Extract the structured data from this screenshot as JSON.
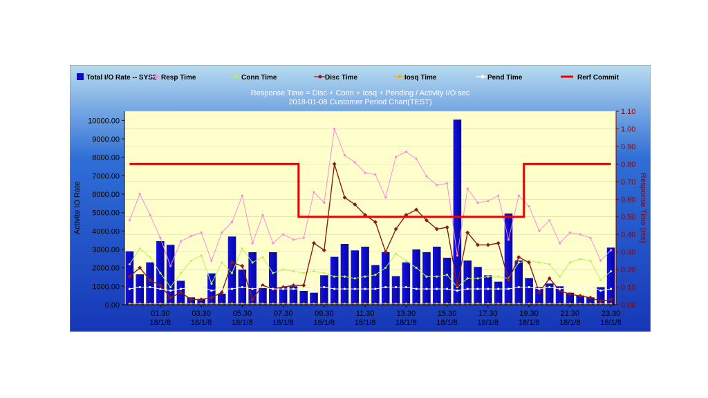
{
  "legend": [
    {
      "label": "Total I/O Rate -- SYS2",
      "color": "#0b0bcc",
      "marker": "square"
    },
    {
      "label": "Resp Time",
      "color": "#ff88dd",
      "marker": "triangle"
    },
    {
      "label": "Conn Time",
      "color": "#b8f060",
      "marker": "triangle"
    },
    {
      "label": "Disc Time",
      "color": "#8b1a1a",
      "marker": "diamond"
    },
    {
      "label": "Iosq Time",
      "color": "#ffaa00",
      "marker": "diamond"
    },
    {
      "label": "Pend Time",
      "color": "#ffffff",
      "marker": "star"
    },
    {
      "label": "Rerf Commit",
      "color": "#ee0000",
      "marker": "line"
    }
  ],
  "chart_data": {
    "type": "bar",
    "title": "Response Time = Disc + Conn + Iosq + Pending / Activity I/O sec",
    "subtitle": "2018-01-08 Customer Period Chart(TEST)",
    "ylabel": "Activite IO Rate",
    "y2label": "Response Time (ms)",
    "ylim": [
      0,
      10500
    ],
    "y2lim": [
      0,
      1.1
    ],
    "yticks": [
      "0.00",
      "1000.00",
      "2000.00",
      "3000.00",
      "4000.00",
      "5000.00",
      "6000.00",
      "7000.00",
      "8000.00",
      "9000.00",
      "10000.00"
    ],
    "y2ticks": [
      "0.00",
      "0.10",
      "0.20",
      "0.30",
      "0.40",
      "0.50",
      "0.60",
      "0.70",
      "0.80",
      "0.90",
      "1.00",
      "1.10"
    ],
    "xticks": [
      {
        "index": 3,
        "line1": "01.30",
        "line2": "18/1/8"
      },
      {
        "index": 7,
        "line1": "03.30",
        "line2": "18/1/8"
      },
      {
        "index": 11,
        "line1": "05.30",
        "line2": "18/1/8"
      },
      {
        "index": 15,
        "line1": "07.30",
        "line2": "18/1/8"
      },
      {
        "index": 19,
        "line1": "09.30",
        "line2": "18/1/8"
      },
      {
        "index": 23,
        "line1": "11.30",
        "line2": "18/1/8"
      },
      {
        "index": 27,
        "line1": "13.30",
        "line2": "18/1/8"
      },
      {
        "index": 31,
        "line1": "15.30",
        "line2": "18/1/8"
      },
      {
        "index": 35,
        "line1": "17.30",
        "line2": "18/1/8"
      },
      {
        "index": 39,
        "line1": "19.30",
        "line2": "18/1/8"
      },
      {
        "index": 43,
        "line1": "21.30",
        "line2": "18/1/8"
      },
      {
        "index": 47,
        "line1": "23.30",
        "line2": "18/1/8"
      }
    ],
    "bars": {
      "name": "Total I/O Rate -- SYS2",
      "axis": "left",
      "values": [
        2900,
        1650,
        2300,
        3450,
        3250,
        1300,
        400,
        300,
        1700,
        600,
        3700,
        1900,
        2850,
        900,
        2850,
        950,
        1000,
        750,
        650,
        1600,
        2600,
        3300,
        2950,
        3150,
        2150,
        2850,
        1550,
        2300,
        3000,
        2850,
        3150,
        2550,
        10050,
        2400,
        2050,
        1600,
        1250,
        4950,
        2400,
        1450,
        950,
        1150,
        1000,
        650,
        500,
        400,
        950,
        3100
      ]
    },
    "series": [
      {
        "name": "Resp Time",
        "axis": "right",
        "values": [
          0.48,
          0.63,
          0.51,
          0.38,
          0.22,
          0.36,
          0.39,
          0.41,
          0.25,
          0.41,
          0.47,
          0.62,
          0.35,
          0.51,
          0.35,
          0.4,
          0.37,
          0.38,
          0.64,
          0.58,
          1.0,
          0.85,
          0.81,
          0.75,
          0.74,
          0.61,
          0.84,
          0.87,
          0.83,
          0.73,
          0.68,
          0.69,
          0.28,
          0.66,
          0.58,
          0.59,
          0.62,
          0.37,
          0.62,
          0.56,
          0.42,
          0.48,
          0.35,
          0.41,
          0.4,
          0.38,
          0.25,
          0.31
        ]
      },
      {
        "name": "Conn Time",
        "axis": "right",
        "values": [
          0.23,
          0.32,
          0.27,
          0.18,
          0.1,
          0.18,
          0.25,
          0.28,
          0.12,
          0.24,
          0.18,
          0.32,
          0.24,
          0.27,
          0.18,
          0.2,
          0.19,
          0.18,
          0.19,
          0.18,
          0.16,
          0.16,
          0.15,
          0.16,
          0.17,
          0.21,
          0.29,
          0.25,
          0.21,
          0.16,
          0.16,
          0.17,
          0.1,
          0.15,
          0.15,
          0.16,
          0.16,
          0.15,
          0.24,
          0.25,
          0.24,
          0.23,
          0.16,
          0.24,
          0.26,
          0.25,
          0.14,
          0.19
        ]
      },
      {
        "name": "Disc Time",
        "axis": "right",
        "values": [
          0.16,
          0.21,
          0.14,
          0.11,
          0.04,
          0.07,
          0.03,
          0.03,
          0.04,
          0.07,
          0.24,
          0.22,
          0.03,
          0.11,
          0.09,
          0.1,
          0.11,
          0.11,
          0.35,
          0.31,
          0.8,
          0.61,
          0.57,
          0.51,
          0.47,
          0.3,
          0.43,
          0.51,
          0.54,
          0.48,
          0.43,
          0.44,
          0.11,
          0.41,
          0.34,
          0.34,
          0.35,
          0.14,
          0.27,
          0.24,
          0.07,
          0.15,
          0.08,
          0.06,
          0.05,
          0.04,
          0.02,
          0.03
        ]
      },
      {
        "name": "Iosq Time",
        "axis": "right",
        "values": [
          0.005,
          0.005,
          0.005,
          0.005,
          0.005,
          0.005,
          0.005,
          0.005,
          0.005,
          0.005,
          0.005,
          0.005,
          0.005,
          0.005,
          0.005,
          0.005,
          0.005,
          0.005,
          0.005,
          0.005,
          0.005,
          0.005,
          0.005,
          0.005,
          0.005,
          0.005,
          0.005,
          0.005,
          0.005,
          0.005,
          0.005,
          0.005,
          0.005,
          0.005,
          0.005,
          0.005,
          0.005,
          0.005,
          0.005,
          0.005,
          0.005,
          0.005,
          0.005,
          0.005,
          0.005,
          0.005,
          0.005,
          0.005
        ]
      },
      {
        "name": "Pend Time",
        "axis": "right",
        "values": [
          0.09,
          0.1,
          0.1,
          0.09,
          0.08,
          0.09,
          0.1,
          0.1,
          0.08,
          0.09,
          0.09,
          0.1,
          0.09,
          0.1,
          0.09,
          0.09,
          0.09,
          0.09,
          0.1,
          0.1,
          0.09,
          0.09,
          0.09,
          0.09,
          0.09,
          0.1,
          0.1,
          0.1,
          0.09,
          0.09,
          0.09,
          0.09,
          0.08,
          0.09,
          0.09,
          0.09,
          0.09,
          0.09,
          0.1,
          0.1,
          0.09,
          0.1,
          0.09,
          0.1,
          0.1,
          0.1,
          0.08,
          0.09
        ]
      },
      {
        "name": "Rerf Commit",
        "axis": "right",
        "values": [
          0.8,
          0.8,
          0.8,
          0.8,
          0.8,
          0.8,
          0.8,
          0.8,
          0.8,
          0.8,
          0.8,
          0.8,
          0.8,
          0.8,
          0.8,
          0.8,
          0.8,
          0.5,
          0.5,
          0.5,
          0.5,
          0.5,
          0.5,
          0.5,
          0.5,
          0.5,
          0.5,
          0.5,
          0.5,
          0.5,
          0.5,
          0.5,
          0.5,
          0.5,
          0.5,
          0.5,
          0.5,
          0.5,
          0.5,
          0.8,
          0.8,
          0.8,
          0.8,
          0.8,
          0.8,
          0.8,
          0.8,
          0.8
        ]
      }
    ]
  }
}
